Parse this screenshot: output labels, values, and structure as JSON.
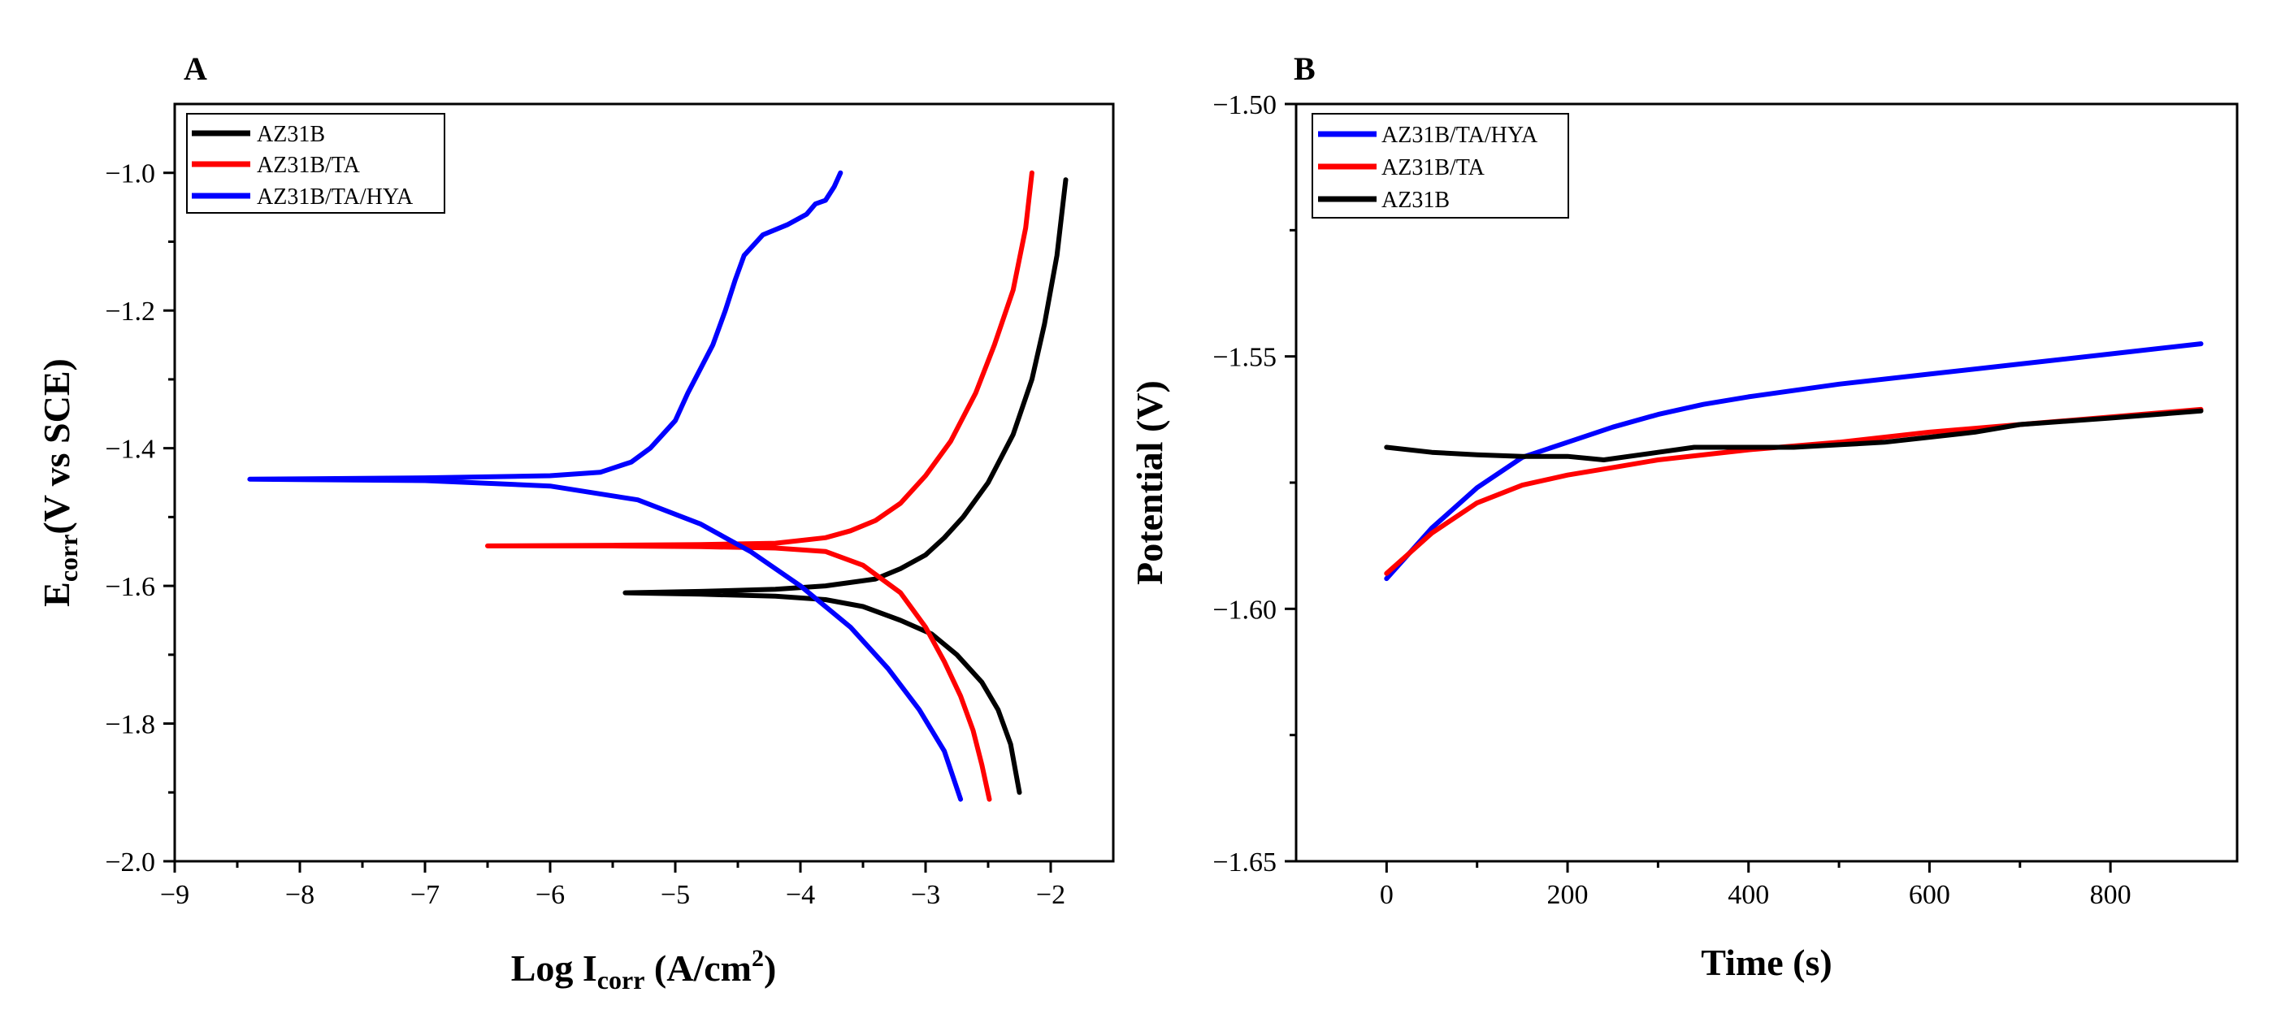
{
  "chart_data": [
    {
      "type": "line",
      "panel_label": "A",
      "title": "",
      "xlabel_main": "Log I",
      "xlabel_sub": "corr",
      "xlabel_tail": " (A/cm",
      "xlabel_sup": "2",
      "xlabel_end": ")",
      "ylabel_main": "E",
      "ylabel_sub": "corr",
      "ylabel_tail": "(V vs SCE)",
      "xlim": [
        -9,
        -1.5
      ],
      "ylim": [
        -2.0,
        -0.9
      ],
      "xticks": [
        -9,
        -8,
        -7,
        -6,
        -5,
        -4,
        -3,
        -2
      ],
      "xtick_labels": [
        "−9",
        "−8",
        "−7",
        "−6",
        "−5",
        "−4",
        "−3",
        "−2"
      ],
      "yticks": [
        -2.0,
        -1.8,
        -1.6,
        -1.4,
        -1.2,
        -1.0
      ],
      "ytick_labels": [
        "−2.0",
        "−1.8",
        "−1.6",
        "−1.4",
        "−1.2",
        "−1.0"
      ],
      "legend_position": "top-left",
      "series": [
        {
          "name": "AZ31B",
          "color": "#000000",
          "x": [
            -1.88,
            -1.95,
            -2.05,
            -2.15,
            -2.3,
            -2.5,
            -2.7,
            -2.85,
            -3.0,
            -3.2,
            -3.4,
            -3.6,
            -3.8,
            -4.2,
            -4.8,
            -5.4,
            -4.8,
            -4.2,
            -3.8,
            -3.5,
            -3.2,
            -2.95,
            -2.75,
            -2.55,
            -2.42,
            -2.32,
            -2.25
          ],
          "y": [
            -1.01,
            -1.12,
            -1.22,
            -1.3,
            -1.38,
            -1.45,
            -1.5,
            -1.53,
            -1.555,
            -1.575,
            -1.59,
            -1.595,
            -1.6,
            -1.605,
            -1.608,
            -1.61,
            -1.612,
            -1.615,
            -1.62,
            -1.63,
            -1.65,
            -1.67,
            -1.7,
            -1.74,
            -1.78,
            -1.83,
            -1.9
          ]
        },
        {
          "name": "AZ31B/TA",
          "color": "#ff0000",
          "x": [
            -2.15,
            -2.2,
            -2.3,
            -2.45,
            -2.6,
            -2.8,
            -3.0,
            -3.2,
            -3.4,
            -3.6,
            -3.8,
            -4.2,
            -4.8,
            -5.5,
            -6.5,
            -5.5,
            -4.8,
            -4.2,
            -3.8,
            -3.5,
            -3.2,
            -3.0,
            -2.85,
            -2.72,
            -2.62,
            -2.55,
            -2.49
          ],
          "y": [
            -1.0,
            -1.08,
            -1.17,
            -1.25,
            -1.32,
            -1.39,
            -1.44,
            -1.48,
            -1.505,
            -1.52,
            -1.53,
            -1.538,
            -1.54,
            -1.541,
            -1.542,
            -1.542,
            -1.543,
            -1.545,
            -1.55,
            -1.57,
            -1.61,
            -1.66,
            -1.71,
            -1.76,
            -1.81,
            -1.86,
            -1.91
          ]
        },
        {
          "name": "AZ31B/TA/HYA",
          "color": "#0000ff",
          "x": [
            -3.68,
            -3.73,
            -3.8,
            -3.88,
            -3.95,
            -4.1,
            -4.3,
            -4.45,
            -4.52,
            -4.6,
            -4.7,
            -4.8,
            -4.9,
            -5.0,
            -5.1,
            -5.2,
            -5.35,
            -5.6,
            -6.0,
            -7.0,
            -8.4,
            -7.0,
            -6.0,
            -5.3,
            -4.8,
            -4.4,
            -4.0,
            -3.6,
            -3.3,
            -3.05,
            -2.85,
            -2.72
          ],
          "y": [
            -1.0,
            -1.02,
            -1.04,
            -1.045,
            -1.06,
            -1.075,
            -1.09,
            -1.12,
            -1.155,
            -1.2,
            -1.25,
            -1.285,
            -1.32,
            -1.36,
            -1.38,
            -1.4,
            -1.42,
            -1.435,
            -1.44,
            -1.443,
            -1.445,
            -1.447,
            -1.455,
            -1.475,
            -1.51,
            -1.55,
            -1.6,
            -1.66,
            -1.72,
            -1.78,
            -1.84,
            -1.91
          ]
        }
      ]
    },
    {
      "type": "line",
      "panel_label": "B",
      "title": "",
      "xlabel": "Time (s)",
      "ylabel": "Potential (V)",
      "xlim": [
        -100,
        940
      ],
      "ylim": [
        -1.65,
        -1.5
      ],
      "xticks": [
        0,
        200,
        400,
        600,
        800
      ],
      "xtick_labels": [
        "0",
        "200",
        "400",
        "600",
        "800"
      ],
      "yticks": [
        -1.65,
        -1.6,
        -1.55,
        -1.5
      ],
      "ytick_labels": [
        "−1.65",
        "−1.60",
        "−1.55",
        "−1.50"
      ],
      "legend_position": "top-left",
      "series": [
        {
          "name": "AZ31B/TA/HYA",
          "color": "#0000ff",
          "x": [
            0,
            25,
            50,
            100,
            150,
            200,
            250,
            300,
            350,
            400,
            500,
            600,
            700,
            800,
            900
          ],
          "y": [
            -1.594,
            -1.589,
            -1.584,
            -1.576,
            -1.57,
            -1.567,
            -1.564,
            -1.5615,
            -1.5595,
            -1.558,
            -1.5555,
            -1.5535,
            -1.5515,
            -1.5495,
            -1.5475
          ]
        },
        {
          "name": "AZ31B/TA",
          "color": "#ff0000",
          "x": [
            0,
            25,
            50,
            100,
            150,
            200,
            250,
            300,
            400,
            500,
            600,
            700,
            800,
            900
          ],
          "y": [
            -1.593,
            -1.589,
            -1.585,
            -1.579,
            -1.5755,
            -1.5735,
            -1.572,
            -1.5705,
            -1.5685,
            -1.567,
            -1.565,
            -1.5635,
            -1.562,
            -1.5605
          ]
        },
        {
          "name": "AZ31B",
          "color": "#000000",
          "x": [
            0,
            50,
            100,
            150,
            200,
            240,
            300,
            340,
            400,
            450,
            500,
            550,
            600,
            650,
            700,
            800,
            900
          ],
          "y": [
            -1.568,
            -1.569,
            -1.5695,
            -1.5698,
            -1.5698,
            -1.5705,
            -1.569,
            -1.568,
            -1.568,
            -1.568,
            -1.5675,
            -1.567,
            -1.566,
            -1.565,
            -1.5635,
            -1.5622,
            -1.5608
          ]
        }
      ]
    }
  ]
}
